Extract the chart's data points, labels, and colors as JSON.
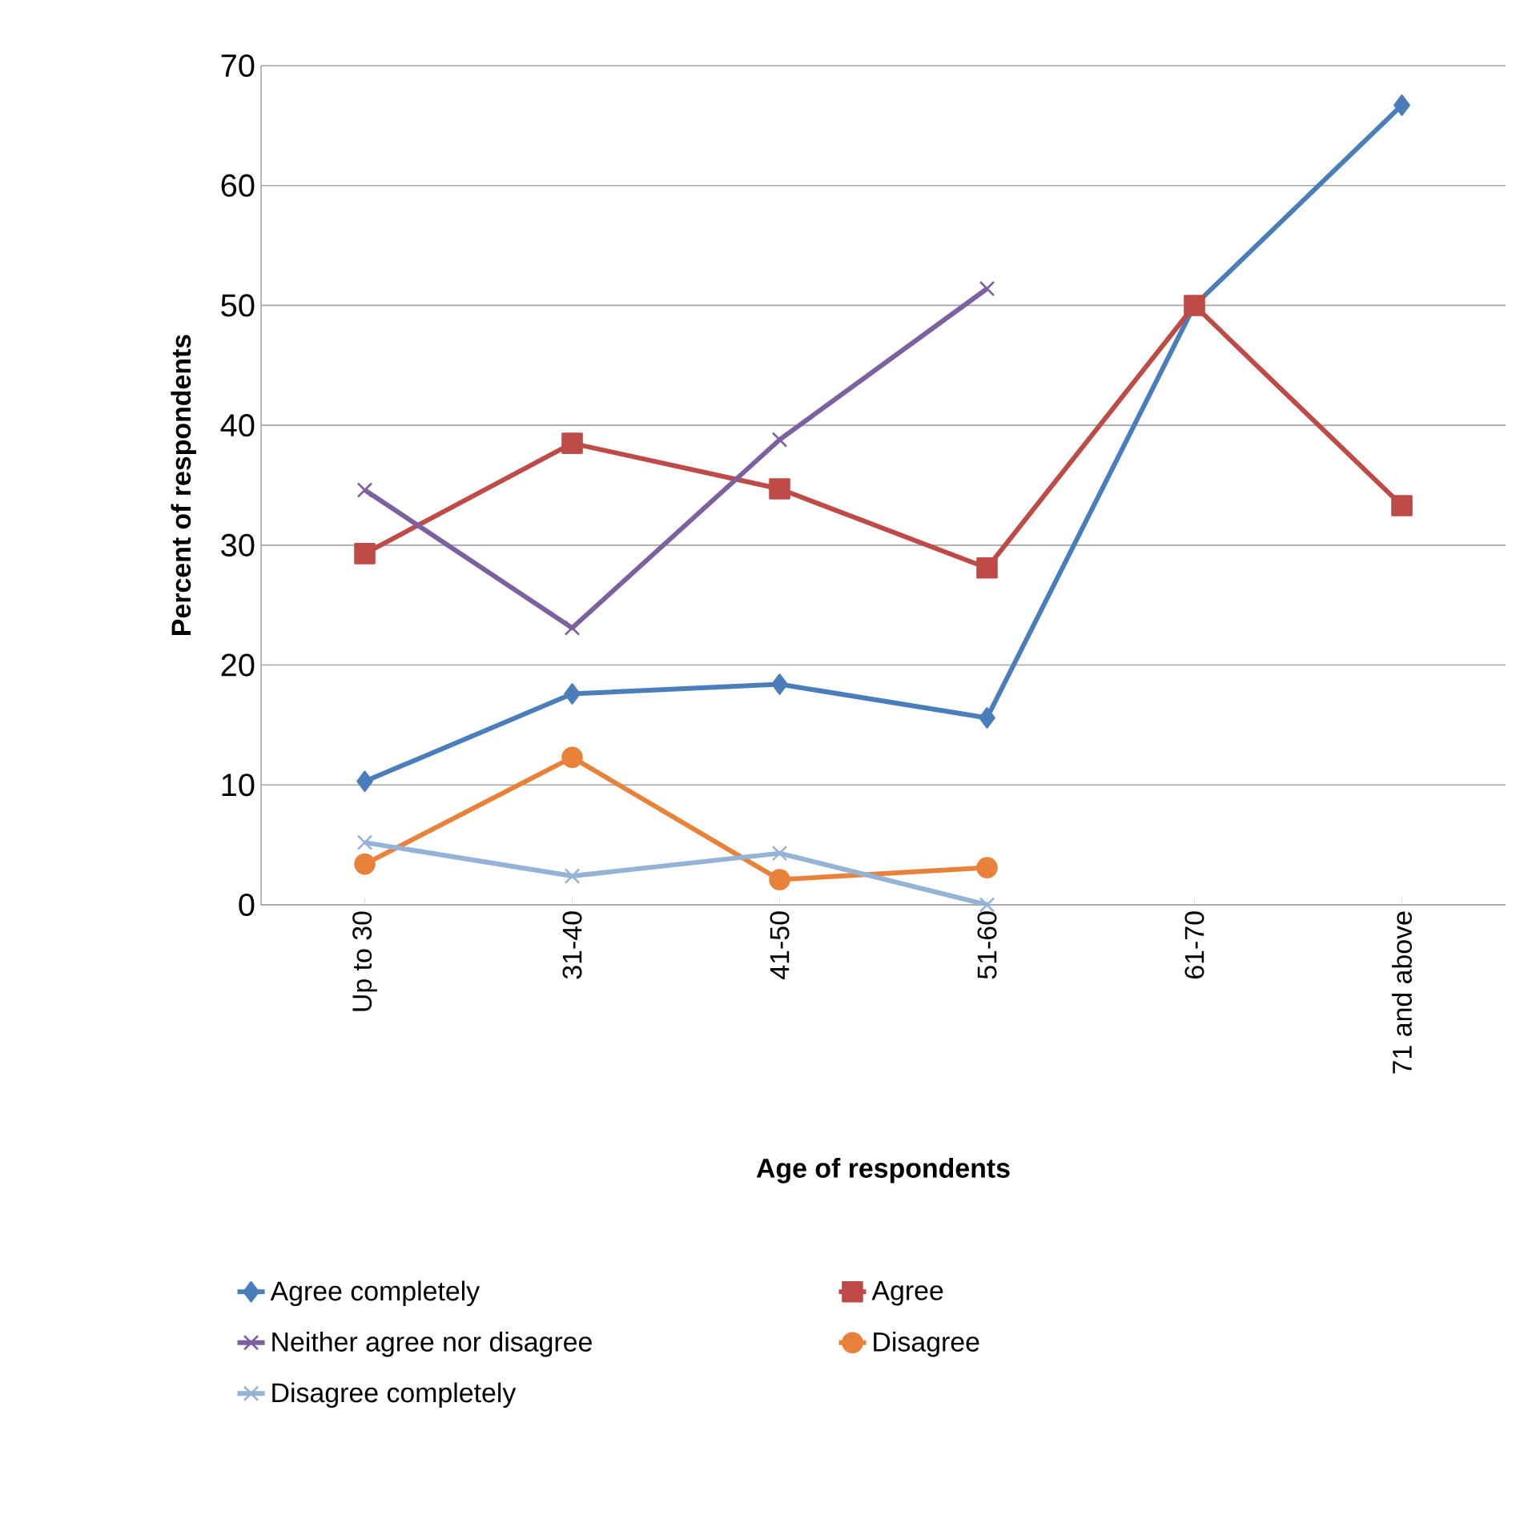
{
  "chart_data": {
    "type": "line",
    "xlabel": "Age of respondents",
    "ylabel": "Percent of respondents",
    "categories": [
      "Up to 30",
      "31-40",
      "41-50",
      "51-60",
      "61-70",
      "71 and above"
    ],
    "series": [
      {
        "name": "Agree completely",
        "color": "#4a7ebb",
        "marker": "diamond",
        "values": [
          10.3,
          17.6,
          18.4,
          15.6,
          50.0,
          66.7
        ]
      },
      {
        "name": "Agree",
        "color": "#be4b48",
        "marker": "square",
        "values": [
          29.3,
          38.5,
          34.7,
          28.1,
          50.0,
          33.3
        ]
      },
      {
        "name": "Neither agree nor disagree",
        "color": "#7d60a0",
        "marker": "cross",
        "values": [
          34.6,
          23.1,
          38.8,
          51.4,
          null,
          null
        ]
      },
      {
        "name": "Disagree",
        "color": "#e8823a",
        "marker": "circle",
        "values": [
          3.4,
          12.3,
          2.1,
          3.1,
          null,
          null
        ]
      },
      {
        "name": "Disagree completely",
        "color": "#95b3d7",
        "marker": "cross",
        "values": [
          5.2,
          2.4,
          4.3,
          0,
          null,
          null
        ]
      }
    ],
    "ylim": [
      0,
      70
    ],
    "yticks": [
      0,
      10,
      20,
      30,
      40,
      50,
      60,
      70
    ],
    "grid": "y",
    "legend": "bottom"
  }
}
